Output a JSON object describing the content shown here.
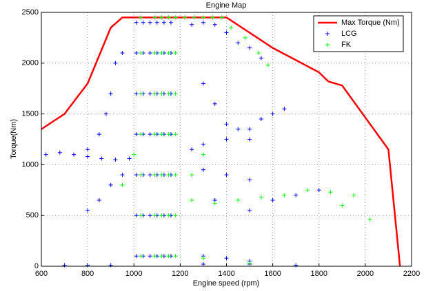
{
  "chart_data": {
    "type": "scatter",
    "title": "Engine Map",
    "x_label": "Engine speed (rpm)",
    "y_label": "Torque(Nm)",
    "xlim": [
      600,
      2200
    ],
    "ylim": [
      0,
      2500
    ],
    "xticks": [
      600,
      800,
      1000,
      1200,
      1400,
      1600,
      1800,
      2000,
      2200
    ],
    "yticks": [
      0,
      500,
      1000,
      1500,
      2000,
      2500
    ],
    "grid": true,
    "legend": "northeast",
    "series": [
      {
        "name": "Max Torque (Nm)",
        "color": "#ff0000",
        "style": "line",
        "x": [
          600,
          700,
          800,
          900,
          950,
          1000,
          1400,
          1600,
          1800,
          1840,
          1900,
          2100,
          2150
        ],
        "values": [
          1350,
          1500,
          1800,
          2350,
          2450,
          2450,
          2450,
          2150,
          1910,
          1820,
          1780,
          1150,
          0
        ]
      },
      {
        "name": "LCG",
        "color": "#0000ff",
        "style": "plus",
        "x": [
          1010,
          1010,
          1010,
          1010,
          1010,
          1010,
          1010,
          1040,
          1040,
          1040,
          1040,
          1040,
          1040,
          1040,
          1070,
          1070,
          1070,
          1070,
          1070,
          1070,
          1070,
          1100,
          1100,
          1100,
          1100,
          1100,
          1100,
          1100,
          1130,
          1130,
          1130,
          1130,
          1130,
          1130,
          1130,
          1160,
          1160,
          1160,
          1160,
          1160,
          1160,
          1160,
          620,
          680,
          740,
          800,
          860,
          920,
          980,
          800,
          850,
          880,
          900,
          920,
          950,
          700,
          800,
          900,
          1300,
          1500,
          1700,
          800,
          850,
          900,
          950,
          1250,
          1300,
          1350,
          1400,
          1450,
          1500,
          1550,
          1300,
          1350,
          1400,
          1450,
          1500,
          1550,
          1600,
          1650,
          1250,
          1300,
          1400,
          1500,
          1300,
          1400,
          1500,
          1350,
          1500,
          1600,
          1700,
          1800,
          1300,
          1400,
          1500
        ],
        "values": [
          100,
          500,
          900,
          1300,
          1700,
          2100,
          2400,
          100,
          500,
          900,
          1300,
          1700,
          2100,
          2400,
          100,
          500,
          900,
          1300,
          1700,
          2100,
          2400,
          100,
          500,
          900,
          1300,
          1700,
          2100,
          2400,
          100,
          500,
          900,
          1300,
          1700,
          2100,
          2400,
          100,
          500,
          900,
          1300,
          1700,
          2100,
          2400,
          1100,
          1120,
          1100,
          1080,
          1060,
          1050,
          1060,
          1150,
          1300,
          1500,
          1700,
          2000,
          2100,
          10,
          10,
          10,
          20,
          20,
          10,
          550,
          650,
          800,
          900,
          2380,
          2400,
          2380,
          2300,
          2200,
          2150,
          2050,
          1800,
          1600,
          1400,
          1350,
          1350,
          1450,
          1500,
          1550,
          1150,
          1200,
          1250,
          1250,
          950,
          900,
          850,
          650,
          550,
          650,
          700,
          750,
          100,
          80,
          50
        ]
      },
      {
        "name": "FK",
        "color": "#00ff00",
        "style": "plus",
        "x": [
          1030,
          1030,
          1030,
          1030,
          1030,
          1030,
          1030,
          1090,
          1090,
          1090,
          1090,
          1090,
          1090,
          1090,
          1120,
          1120,
          1120,
          1120,
          1120,
          1120,
          1120,
          1150,
          1150,
          1150,
          1150,
          1150,
          1150,
          1150,
          1180,
          1180,
          1180,
          1180,
          1180,
          1180,
          1180,
          1220,
          1260,
          1300,
          1340,
          1380,
          1420,
          1480,
          1540,
          1580,
          1250,
          1350,
          1450,
          1550,
          1650,
          1750,
          1850,
          1950,
          2020,
          1900,
          950,
          1000,
          1300,
          1250,
          1300,
          1500
        ],
        "values": [
          100,
          500,
          900,
          1300,
          1700,
          2100,
          2450,
          100,
          500,
          900,
          1300,
          1700,
          2100,
          2450,
          100,
          500,
          900,
          1300,
          1700,
          2100,
          2450,
          100,
          500,
          900,
          1300,
          1700,
          2100,
          2450,
          100,
          500,
          900,
          1300,
          1700,
          2100,
          2450,
          2450,
          2450,
          2450,
          2450,
          2450,
          2350,
          2250,
          2100,
          1980,
          650,
          620,
          650,
          680,
          700,
          750,
          730,
          700,
          460,
          600,
          800,
          1100,
          1100,
          900,
          80,
          30
        ]
      }
    ]
  }
}
